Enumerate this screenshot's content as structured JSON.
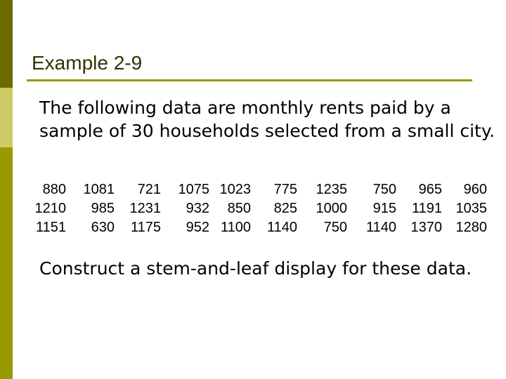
{
  "slide": {
    "title": "Example 2-9",
    "intro": "The following data are monthly rents paid by a sample of 30 households selected from a small city.",
    "task": "Construct a stem-and-leaf display for these data."
  },
  "rents": [
    [
      "880",
      "1081",
      "721",
      "1075",
      "1023",
      "775",
      "1235",
      "750",
      "965",
      "960"
    ],
    [
      "1210",
      "985",
      "1231",
      "932",
      "850",
      "825",
      "1000",
      "915",
      "1191",
      "1035"
    ],
    [
      "1151",
      "630",
      "1175",
      "952",
      "1100",
      "1140",
      "750",
      "1140",
      "1370",
      "1280"
    ]
  ]
}
